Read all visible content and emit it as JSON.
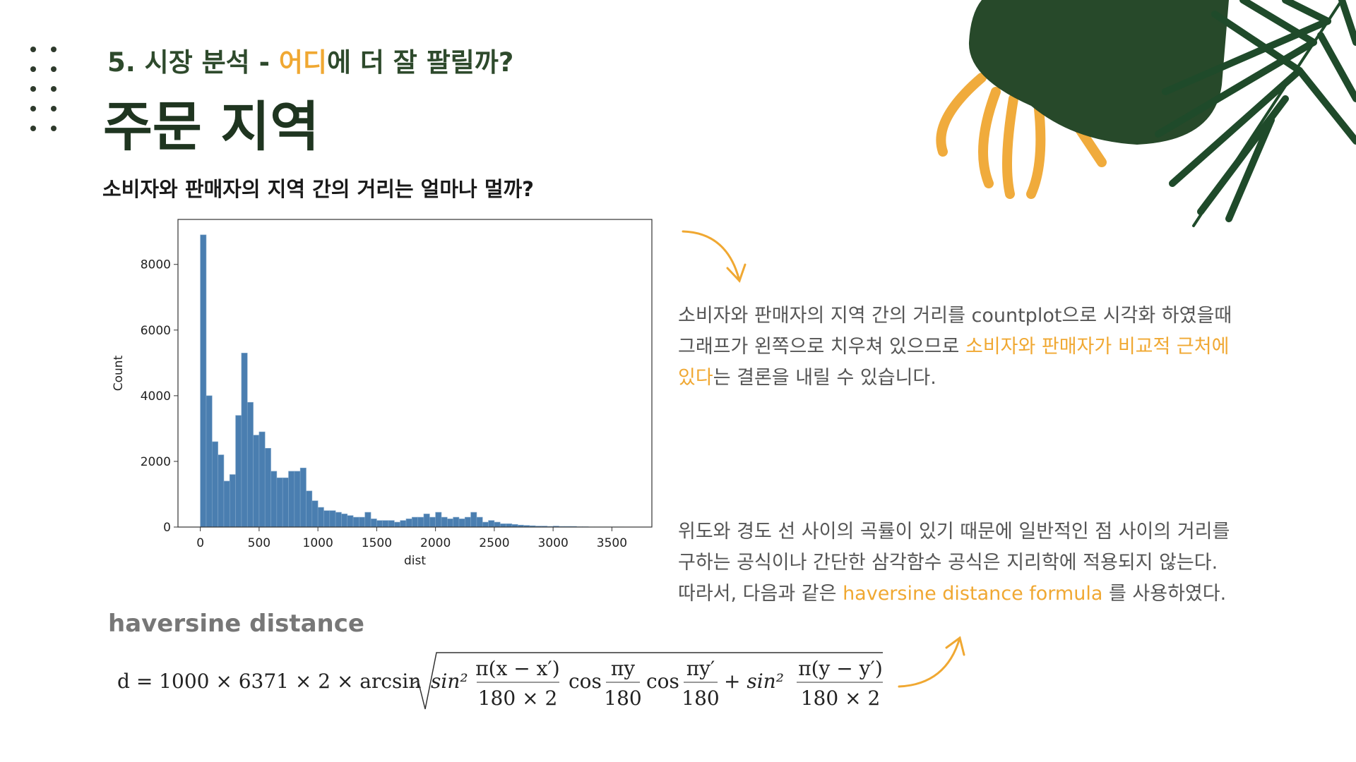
{
  "header": {
    "subtitle": [
      "5. 시장 분석 - ",
      "어디",
      "에 더 잘 팔릴까?"
    ],
    "title": "주문 지역",
    "question": "소비자와 판매자의 지역 간의 거리는 얼마나 멀까?"
  },
  "paragraph1": [
    [
      "소비자와 판매자의 지역 간의 거리를 countplot으로 시각화 하였을때"
    ],
    [
      "그래프가 왼쪽으로 치우쳐 있으므로 ",
      "소비자와 판매자가 비교적 근처에"
    ],
    [
      "있다",
      "는 결론을 내릴 수 있습니다."
    ]
  ],
  "paragraph2": [
    [
      "위도와 경도 선 사이의 곡률이 있기 때문에 일반적인 점 사이의 거리를"
    ],
    [
      "구하는 공식이나 간단한 삼각함수 공식은 지리학에 적용되지 않는다."
    ],
    [
      "따라서, 다음과 같은 ",
      "haversine distance formula",
      " 를 사용하였다."
    ]
  ],
  "formula": {
    "label": "haversine distance",
    "parts": [
      "d = 1000 × 6371 × 2 × arcsin",
      "sin²",
      "π(x − x′)",
      "180 × 2",
      "cos",
      "πy",
      "180",
      "cos",
      "πy′",
      "180",
      "+ sin²",
      "π(y − y′)",
      "180 × 2"
    ]
  },
  "chart_data": {
    "type": "histogram",
    "xlabel": "dist",
    "ylabel": "Count",
    "color": "#4a7eb0",
    "bins": [
      0,
      50,
      100,
      150,
      200,
      250,
      300,
      350,
      400,
      450,
      500,
      550,
      600,
      650,
      700,
      750,
      800,
      850,
      900,
      950,
      1000,
      1050,
      1100,
      1150,
      1200,
      1250,
      1300,
      1350,
      1400,
      1450,
      1500,
      1550,
      1600,
      1650,
      1700,
      1750,
      1800,
      1850,
      1900,
      1950,
      2000,
      2050,
      2100,
      2150,
      2200,
      2250,
      2300,
      2350,
      2400,
      2450,
      2500,
      2550,
      2600,
      2650,
      2700,
      2750,
      2800,
      2850,
      2900,
      2950,
      3000,
      3050,
      3100,
      3150,
      3200,
      3250,
      3300,
      3350,
      3400,
      3450,
      3500,
      3550,
      3600
    ],
    "counts": [
      8900,
      4000,
      2600,
      2200,
      1400,
      1600,
      3400,
      5300,
      3800,
      2800,
      2900,
      2400,
      1700,
      1500,
      1500,
      1700,
      1700,
      1800,
      1100,
      800,
      600,
      500,
      500,
      450,
      400,
      350,
      300,
      300,
      450,
      250,
      200,
      200,
      200,
      150,
      200,
      250,
      300,
      300,
      400,
      300,
      450,
      300,
      250,
      300,
      250,
      300,
      450,
      300,
      150,
      200,
      150,
      100,
      100,
      80,
      60,
      50,
      40,
      30,
      30,
      20,
      30,
      20,
      20,
      20,
      10,
      10,
      5,
      5,
      5,
      5,
      5,
      5
    ],
    "xlim": [
      -190,
      3840
    ],
    "ylim": [
      0,
      9370
    ],
    "xticks": [
      0,
      500,
      1000,
      1500,
      2000,
      2500,
      3000,
      3500
    ],
    "yticks": [
      0,
      2000,
      4000,
      6000,
      8000
    ]
  }
}
